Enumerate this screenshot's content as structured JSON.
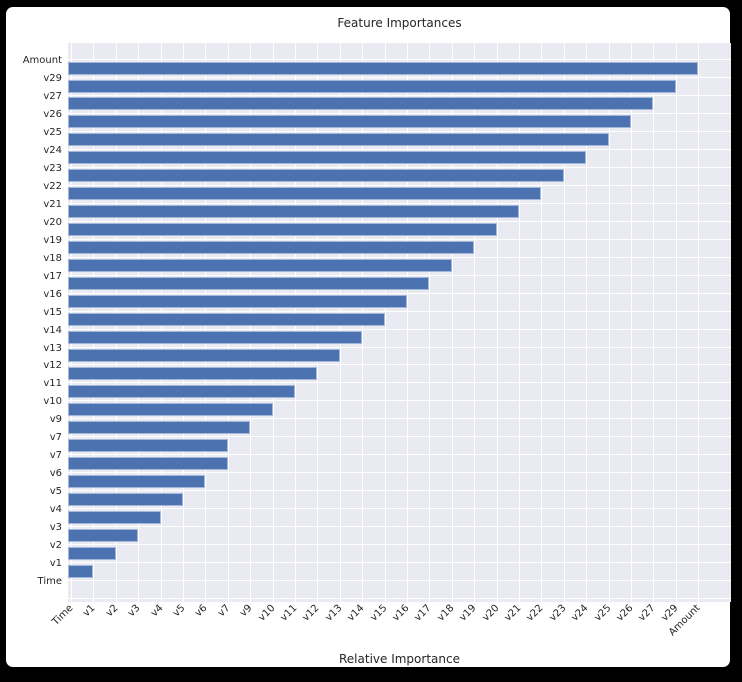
{
  "chart_data": {
    "type": "bar",
    "orientation": "horizontal",
    "title": "Feature Importances",
    "xlabel": "Relative Importance",
    "ylabel": "",
    "categories": [
      "Amount",
      "v29",
      "v27",
      "v26",
      "v25",
      "v24",
      "v23",
      "v22",
      "v21",
      "v20",
      "v19",
      "v18",
      "v17",
      "v16",
      "v15",
      "v14",
      "v13",
      "v12",
      "v11",
      "v10",
      "v9",
      "v7",
      "v7",
      "v6",
      "v5",
      "v4",
      "v3",
      "v2",
      "v1",
      "Time"
    ],
    "values": [
      28,
      27,
      26,
      25,
      24,
      23,
      22,
      21,
      20,
      19,
      18,
      17,
      16,
      15,
      14,
      13,
      12,
      11,
      10,
      9,
      8,
      7,
      7,
      6,
      5,
      4,
      3,
      2,
      1,
      0
    ],
    "xtick_labels": [
      "Time",
      "v1",
      "v2",
      "v3",
      "v4",
      "v5",
      "v6",
      "v7",
      "v9",
      "v10",
      "v11",
      "v12",
      "v13",
      "v14",
      "v15",
      "v16",
      "v17",
      "v18",
      "v19",
      "v20",
      "v21",
      "v22",
      "v23",
      "v24",
      "v25",
      "v26",
      "v27",
      "v29",
      "Amount"
    ],
    "xtick_values": [
      0,
      1,
      2,
      3,
      4,
      5,
      6,
      7,
      8,
      9,
      10,
      11,
      12,
      13,
      14,
      15,
      16,
      17,
      18,
      19,
      20,
      21,
      22,
      23,
      24,
      25,
      26,
      27,
      28
    ],
    "xlim": [
      -0.15,
      29.5
    ],
    "grid": true,
    "legend": null,
    "colors": {
      "bar": "#4c72b0",
      "bar_edge": "#a2b7da",
      "plot_background": "#eaeaf2",
      "grid": "#ffffff",
      "text": "#262626",
      "figure_background": "#ffffff",
      "frame": "#000000"
    }
  }
}
